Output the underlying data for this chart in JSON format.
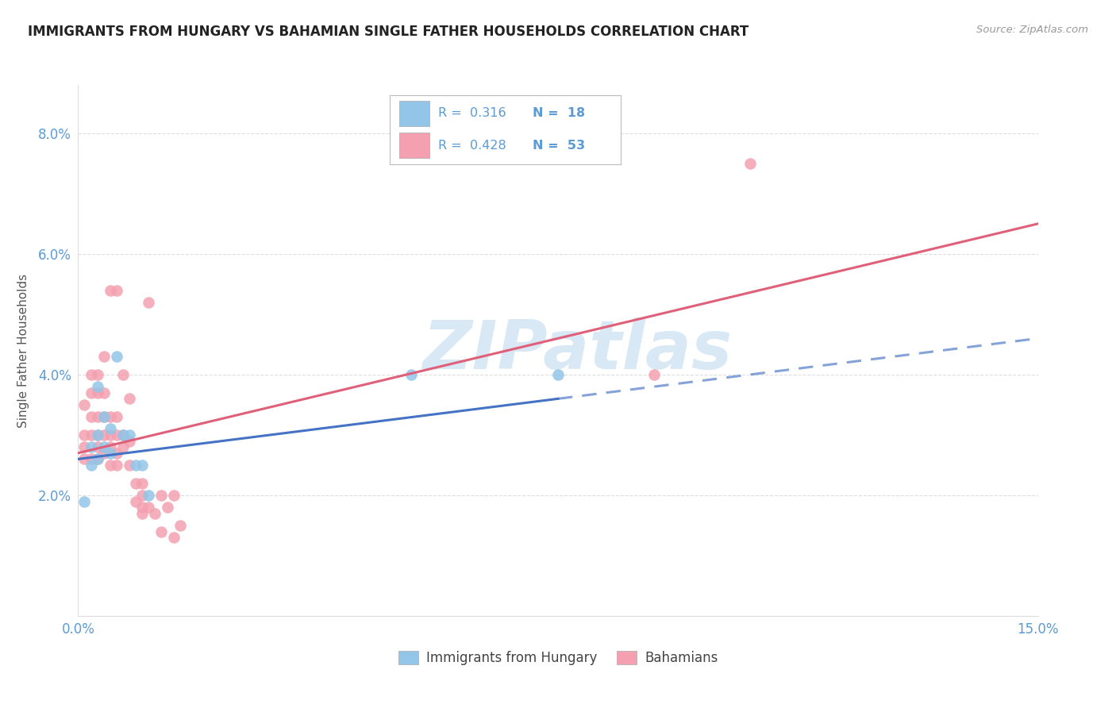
{
  "title": "IMMIGRANTS FROM HUNGARY VS BAHAMIAN SINGLE FATHER HOUSEHOLDS CORRELATION CHART",
  "source": "Source: ZipAtlas.com",
  "ylabel": "Single Father Households",
  "xlim": [
    0.0,
    0.15
  ],
  "ylim": [
    0.0,
    0.088
  ],
  "yticks": [
    0.02,
    0.04,
    0.06,
    0.08
  ],
  "ytick_labels": [
    "2.0%",
    "4.0%",
    "6.0%",
    "8.0%"
  ],
  "xticks": [
    0.0,
    0.05,
    0.1,
    0.15
  ],
  "xtick_labels": [
    "0.0%",
    "",
    "",
    "15.0%"
  ],
  "blue_color": "#92C5E8",
  "pink_color": "#F4A0B0",
  "blue_line_color": "#4472C4",
  "pink_line_color": "#E0607A",
  "tick_color": "#5B9BD5",
  "grid_color": "#DDDDDD",
  "watermark_color": "#D8E8F5",
  "hungary_x": [
    0.001,
    0.002,
    0.002,
    0.003,
    0.003,
    0.003,
    0.004,
    0.004,
    0.005,
    0.005,
    0.006,
    0.007,
    0.008,
    0.009,
    0.01,
    0.011,
    0.052,
    0.075
  ],
  "hungary_y": [
    0.019,
    0.025,
    0.028,
    0.026,
    0.03,
    0.038,
    0.028,
    0.033,
    0.027,
    0.031,
    0.043,
    0.03,
    0.03,
    0.025,
    0.025,
    0.02,
    0.04,
    0.04
  ],
  "bahamian_x": [
    0.001,
    0.001,
    0.001,
    0.001,
    0.002,
    0.002,
    0.002,
    0.002,
    0.002,
    0.003,
    0.003,
    0.003,
    0.003,
    0.003,
    0.003,
    0.004,
    0.004,
    0.004,
    0.004,
    0.004,
    0.005,
    0.005,
    0.005,
    0.005,
    0.005,
    0.006,
    0.006,
    0.006,
    0.006,
    0.006,
    0.007,
    0.007,
    0.007,
    0.008,
    0.008,
    0.008,
    0.009,
    0.009,
    0.01,
    0.01,
    0.01,
    0.01,
    0.011,
    0.011,
    0.012,
    0.013,
    0.013,
    0.014,
    0.015,
    0.015,
    0.016,
    0.09,
    0.105
  ],
  "bahamian_y": [
    0.026,
    0.028,
    0.03,
    0.035,
    0.026,
    0.03,
    0.033,
    0.037,
    0.04,
    0.026,
    0.028,
    0.03,
    0.033,
    0.037,
    0.04,
    0.027,
    0.03,
    0.033,
    0.037,
    0.043,
    0.025,
    0.028,
    0.03,
    0.033,
    0.054,
    0.025,
    0.027,
    0.03,
    0.033,
    0.054,
    0.028,
    0.03,
    0.04,
    0.025,
    0.029,
    0.036,
    0.019,
    0.022,
    0.017,
    0.018,
    0.02,
    0.022,
    0.018,
    0.052,
    0.017,
    0.014,
    0.02,
    0.018,
    0.013,
    0.02,
    0.015,
    0.04,
    0.075
  ]
}
